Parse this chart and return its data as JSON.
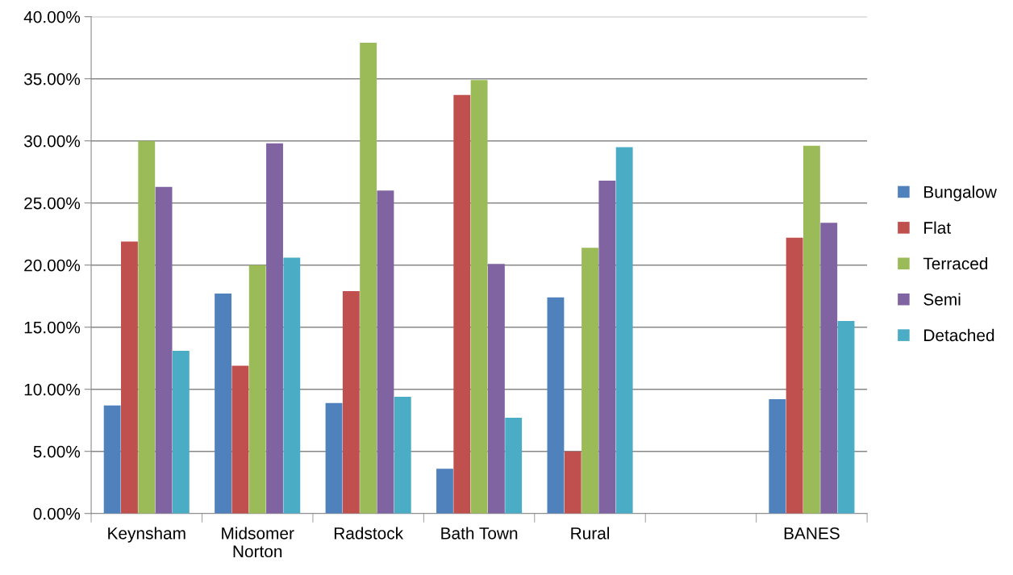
{
  "chart_data": {
    "type": "bar",
    "categories": [
      "Keynsham",
      "Midsomer\nNorton",
      "Radstock",
      "Bath Town",
      "Rural",
      null,
      "BANES"
    ],
    "series": [
      {
        "name": "Bungalow",
        "color": "#4f81bd",
        "values": [
          8.7,
          17.7,
          8.9,
          3.6,
          17.4,
          null,
          9.2
        ]
      },
      {
        "name": "Flat",
        "color": "#c0504d",
        "values": [
          21.9,
          11.9,
          17.9,
          33.7,
          5.0,
          null,
          22.2
        ]
      },
      {
        "name": "Terraced",
        "color": "#9bbb59",
        "values": [
          30.0,
          20.0,
          37.9,
          34.9,
          21.4,
          null,
          29.6
        ]
      },
      {
        "name": "Semi",
        "color": "#8064a2",
        "values": [
          26.3,
          29.8,
          26.0,
          20.1,
          26.8,
          null,
          23.4
        ]
      },
      {
        "name": "Detached",
        "color": "#4bacc6",
        "values": [
          13.1,
          20.6,
          9.4,
          7.7,
          29.5,
          null,
          15.5
        ]
      }
    ],
    "ylim": [
      0,
      40
    ],
    "yticks": [
      {
        "value": 0,
        "label": "0.00%"
      },
      {
        "value": 5,
        "label": "5.00%"
      },
      {
        "value": 10,
        "label": "10.00%"
      },
      {
        "value": 15,
        "label": "15.00%"
      },
      {
        "value": 20,
        "label": "20.00%"
      },
      {
        "value": 25,
        "label": "25.00%"
      },
      {
        "value": 30,
        "label": "30.00%"
      },
      {
        "value": 35,
        "label": "35.00%"
      },
      {
        "value": 40,
        "label": "40.00%"
      }
    ],
    "grid": "y",
    "legend": "right"
  }
}
